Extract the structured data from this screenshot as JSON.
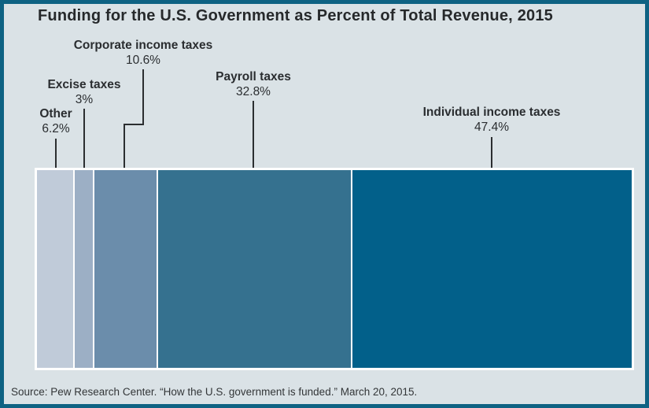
{
  "frame": {
    "border_color": "#0e6283",
    "background_color": "#dae2e6"
  },
  "chart_data": {
    "type": "bar",
    "variant": "stacked-horizontal-100-percent",
    "title": "Funding for the U.S. Government as Percent of Total Revenue, 2015",
    "categories": [
      "Other",
      "Excise taxes",
      "Corporate income taxes",
      "Payroll taxes",
      "Individual income taxes"
    ],
    "values": [
      6.2,
      3,
      10.6,
      32.8,
      47.4
    ],
    "value_labels": [
      "6.2%",
      "3%",
      "10.6%",
      "32.8%",
      "47.4%"
    ],
    "colors": [
      "#c0cbd9",
      "#9cafc5",
      "#6b8dab",
      "#35718f",
      "#02608a"
    ],
    "xlim": [
      0,
      100
    ],
    "legend_position": "callout-labels-above-bar",
    "grid": false,
    "source": "Source: Pew Research Center. “How the U.S. government is funded.” March 20, 2015."
  }
}
